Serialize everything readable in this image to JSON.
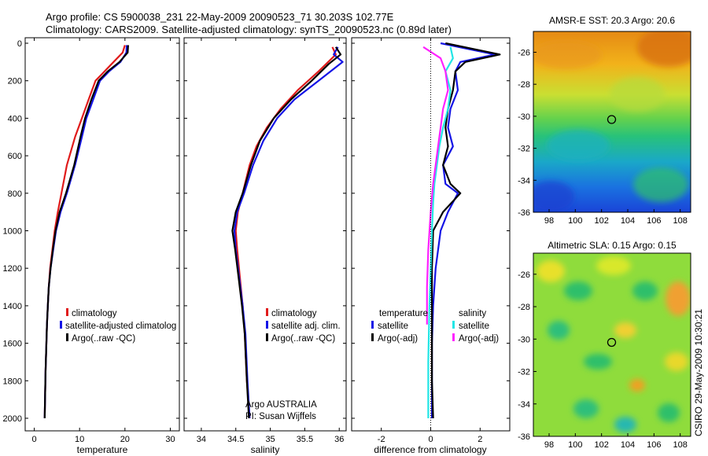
{
  "title": {
    "line1": "Argo profile: CS 5900038_231 22-May-2009 20090523_71 30.203S 102.77E",
    "line2": "Climatology: CARS2009. Satellite-adjusted climatology: synTS_20090523.nc (0.89d later)"
  },
  "credit": "CSIRO 29-May-2009 10:30:21",
  "colors": {
    "red": "#e01b1b",
    "blue": "#1414e6",
    "black": "#000000",
    "cyan": "#22e6e6",
    "magenta": "#ff22ff"
  },
  "chart_data": [
    {
      "id": "temperature",
      "type": "line",
      "xlabel": "temperature",
      "ylabel": "",
      "xlim": [
        -2,
        32
      ],
      "ylim": [
        2050,
        0
      ],
      "xticks": [
        0,
        10,
        20,
        30
      ],
      "yticks": [
        0,
        200,
        400,
        600,
        800,
        1000,
        1200,
        1400,
        1600,
        1800,
        2000
      ],
      "legend": [
        "climatology",
        "satellite-adjusted climatolog",
        "Argo(..raw -QC)"
      ],
      "series": [
        {
          "name": "climatology",
          "color": "red",
          "x": [
            20.0,
            19.5,
            17.5,
            15.5,
            13.5,
            12.0,
            10.5,
            9.0,
            7.2,
            6.0,
            5.2,
            4.5,
            4.0,
            3.5,
            3.2,
            3.0,
            2.8,
            2.5,
            2.3
          ],
          "y": [
            10,
            50,
            100,
            150,
            200,
            300,
            400,
            500,
            650,
            800,
            900,
            1000,
            1100,
            1200,
            1300,
            1400,
            1500,
            1750,
            2000
          ]
        },
        {
          "name": "satellite-adjusted climatology",
          "color": "blue",
          "x": [
            20.4,
            20.3,
            19.0,
            16.5,
            14.5,
            13.0,
            11.5,
            10.5,
            9.0,
            7.2,
            5.8,
            4.8,
            4.2,
            3.6,
            3.2,
            3.0,
            2.8,
            2.5,
            2.3
          ],
          "y": [
            10,
            50,
            100,
            150,
            200,
            300,
            400,
            500,
            650,
            800,
            900,
            1000,
            1100,
            1200,
            1300,
            1400,
            1500,
            1750,
            2000
          ]
        },
        {
          "name": "Argo(..raw -QC)",
          "color": "black",
          "x": [
            20.7,
            20.6,
            18.8,
            16.2,
            14.2,
            12.6,
            11.2,
            10.2,
            8.8,
            7.0,
            5.6,
            4.7,
            4.1,
            3.6,
            3.2,
            3.0,
            2.8,
            2.5,
            2.3
          ],
          "y": [
            10,
            50,
            100,
            150,
            200,
            300,
            400,
            500,
            650,
            800,
            900,
            1000,
            1100,
            1200,
            1300,
            1400,
            1500,
            1750,
            2000
          ]
        }
      ]
    },
    {
      "id": "salinity",
      "type": "line",
      "xlabel": "salinity",
      "xlim": [
        33.75,
        36.1
      ],
      "ylim": [
        2050,
        0
      ],
      "xticks": [
        34,
        34.5,
        35,
        35.5,
        36
      ],
      "xticklabels": [
        "34",
        "34.5",
        "35",
        "35.5",
        "36"
      ],
      "legend": [
        "climatology",
        "satellite adj. clim.",
        "Argo(..raw -QC)"
      ],
      "annotation": [
        "Argo AUSTRALIA",
        "PI: Susan Wijffels"
      ],
      "series": [
        {
          "name": "climatology",
          "color": "red",
          "x": [
            35.9,
            35.95,
            35.7,
            35.4,
            35.15,
            34.95,
            34.8,
            34.7,
            34.6,
            34.53,
            34.5,
            34.52,
            34.56,
            34.6,
            34.63,
            34.66,
            34.7
          ],
          "y": [
            20,
            60,
            150,
            250,
            350,
            450,
            550,
            650,
            800,
            900,
            1000,
            1100,
            1250,
            1400,
            1550,
            1800,
            2000
          ]
        },
        {
          "name": "satellite adj. clim.",
          "color": "blue",
          "x": [
            35.98,
            35.92,
            36.05,
            35.7,
            35.35,
            35.1,
            34.9,
            34.75,
            34.62,
            34.52,
            34.48,
            34.5,
            34.55,
            34.6,
            34.64,
            34.67,
            34.7
          ],
          "y": [
            20,
            60,
            100,
            200,
            300,
            400,
            520,
            650,
            800,
            900,
            1000,
            1100,
            1250,
            1400,
            1550,
            1800,
            2000
          ]
        },
        {
          "name": "Argo(..raw -QC)",
          "color": "black",
          "x": [
            35.95,
            36.02,
            35.85,
            35.6,
            35.3,
            35.05,
            34.85,
            34.72,
            34.6,
            34.5,
            34.45,
            34.49,
            34.54,
            34.59,
            34.63,
            34.66,
            34.69
          ],
          "y": [
            20,
            60,
            110,
            200,
            300,
            400,
            520,
            650,
            800,
            900,
            1000,
            1100,
            1250,
            1400,
            1550,
            1800,
            2000
          ]
        }
      ]
    },
    {
      "id": "difference",
      "type": "line",
      "xlabel": "difference from climatology",
      "xlim": [
        -3.2,
        3.2
      ],
      "ylim": [
        2050,
        0
      ],
      "xticks": [
        -2,
        0,
        2
      ],
      "legend_headers": [
        "temperature",
        "salinity"
      ],
      "legend": [
        "satellite",
        "Argo(-adj)",
        "satellite",
        "Argo(-adj)"
      ],
      "series": [
        {
          "name": "temperature satellite",
          "color": "blue",
          "x": [
            0.4,
            2.6,
            1.2,
            1.0,
            1.1,
            0.8,
            0.7,
            0.9,
            0.5,
            0.6,
            1.1,
            0.7,
            0.4,
            0.2,
            0.1,
            0.05,
            0.05,
            0.05
          ],
          "y": [
            0,
            60,
            100,
            150,
            250,
            350,
            450,
            550,
            650,
            750,
            800,
            900,
            1000,
            1200,
            1400,
            1600,
            1800,
            2000
          ]
        },
        {
          "name": "temperature Argo(-adj)",
          "color": "black",
          "x": [
            0.6,
            2.8,
            1.4,
            1.0,
            0.9,
            0.7,
            0.6,
            0.7,
            0.5,
            0.8,
            1.2,
            0.5,
            0.1,
            0.05,
            0.05,
            0.05,
            0.05,
            0.1
          ],
          "y": [
            0,
            60,
            100,
            150,
            250,
            350,
            450,
            550,
            650,
            750,
            800,
            900,
            1000,
            1200,
            1400,
            1600,
            1800,
            2000
          ]
        },
        {
          "name": "salinity satellite",
          "color": "cyan",
          "x": [
            0.8,
            0.9,
            0.6,
            0.8,
            0.7,
            0.5,
            0.35,
            0.25,
            0.15,
            0.1,
            0.05,
            0.0,
            -0.05,
            -0.1,
            -0.1
          ],
          "y": [
            20,
            80,
            150,
            250,
            350,
            450,
            550,
            650,
            750,
            850,
            1000,
            1200,
            1400,
            1700,
            2000
          ]
        },
        {
          "name": "salinity Argo(-adj)",
          "color": "magenta",
          "x": [
            -0.3,
            0.4,
            0.6,
            0.7,
            0.5,
            0.4,
            0.3,
            0.2,
            0.1,
            0.0,
            -0.1,
            -0.15,
            -0.15
          ],
          "y": [
            20,
            80,
            150,
            250,
            350,
            450,
            550,
            650,
            750,
            900,
            1100,
            1300,
            1500
          ]
        }
      ]
    },
    {
      "id": "sst_map",
      "type": "heatmap",
      "title": "AMSR-E SST: 20.3 Argo: 20.6",
      "xlim": [
        96.8,
        108.8
      ],
      "ylim": [
        -36,
        -24.7
      ],
      "xticks": [
        98,
        100,
        102,
        104,
        106,
        108
      ],
      "yticks": [
        -26,
        -28,
        -30,
        -32,
        -34,
        -36
      ],
      "marker": {
        "lon": 102.77,
        "lat": -30.203
      }
    },
    {
      "id": "sla_map",
      "type": "heatmap",
      "title": "Altimetric SLA: 0.15 Argo: 0.15",
      "xlim": [
        96.8,
        108.8
      ],
      "ylim": [
        -36,
        -24.7
      ],
      "xticks": [
        98,
        100,
        102,
        104,
        106,
        108
      ],
      "yticks": [
        -26,
        -28,
        -30,
        -32,
        -34,
        -36
      ],
      "marker": {
        "lon": 102.77,
        "lat": -30.203
      }
    }
  ]
}
